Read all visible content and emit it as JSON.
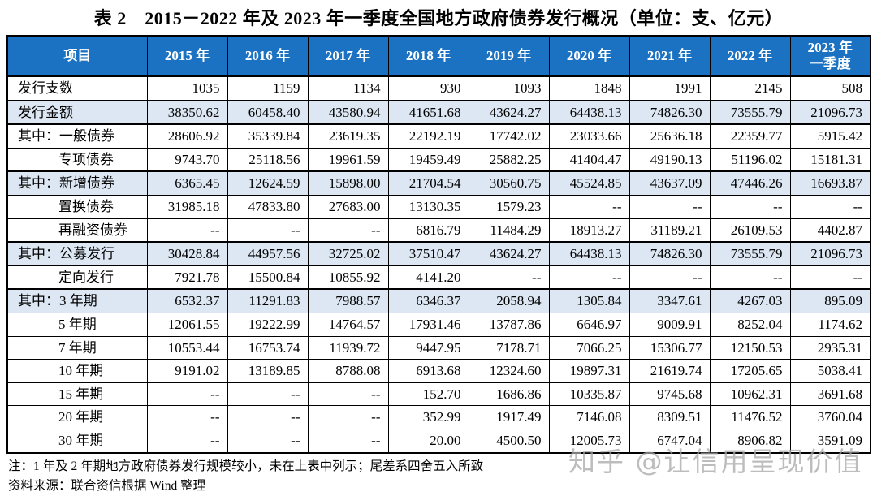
{
  "title": "表 2　2015－2022 年及 2023 年一季度全国地方政府债券发行概况（单位：支、亿元）",
  "colors": {
    "header_bg": "#1b72c2",
    "header_text": "#ffffff",
    "shaded_row_bg": "#dce7f3",
    "border": "#000000",
    "watermark_text": "#a8a8a8"
  },
  "table": {
    "columns": [
      "项目",
      "2015 年",
      "2016 年",
      "2017 年",
      "2018 年",
      "2019 年",
      "2020 年",
      "2021 年",
      "2022 年",
      "2023 年\n一季度"
    ],
    "rows": [
      {
        "label": "发行支数",
        "indent": "top",
        "shaded": false,
        "section": false,
        "values": [
          "1035",
          "1159",
          "1134",
          "930",
          "1093",
          "1848",
          "1991",
          "2145",
          "508"
        ]
      },
      {
        "label": "发行金额",
        "indent": "top",
        "shaded": true,
        "section": true,
        "values": [
          "38350.62",
          "60458.40",
          "43580.94",
          "41651.68",
          "43624.27",
          "64438.13",
          "74826.30",
          "73555.79",
          "21096.73"
        ]
      },
      {
        "label": "其中：一般债券",
        "indent": "top",
        "shaded": false,
        "section": true,
        "values": [
          "28606.92",
          "35339.84",
          "23619.35",
          "22192.19",
          "17742.02",
          "23033.66",
          "25636.18",
          "22359.77",
          "5915.42"
        ]
      },
      {
        "label": "专项债券",
        "indent": "sub",
        "shaded": false,
        "section": false,
        "values": [
          "9743.70",
          "25118.56",
          "19961.59",
          "19459.49",
          "25882.25",
          "41404.47",
          "49190.13",
          "51196.02",
          "15181.31"
        ]
      },
      {
        "label": "其中：新增债券",
        "indent": "top",
        "shaded": true,
        "section": true,
        "values": [
          "6365.45",
          "12624.59",
          "15898.00",
          "21704.54",
          "30560.75",
          "45524.85",
          "43637.09",
          "47446.26",
          "16693.87"
        ]
      },
      {
        "label": "置换债券",
        "indent": "sub",
        "shaded": false,
        "section": false,
        "values": [
          "31985.18",
          "47833.80",
          "27683.00",
          "13130.35",
          "1579.23",
          "--",
          "--",
          "--",
          "--"
        ]
      },
      {
        "label": "再融资债券",
        "indent": "sub",
        "shaded": false,
        "section": false,
        "values": [
          "--",
          "--",
          "--",
          "6816.79",
          "11484.29",
          "18913.27",
          "31189.21",
          "26109.53",
          "4402.87"
        ]
      },
      {
        "label": "其中：公募发行",
        "indent": "top",
        "shaded": true,
        "section": true,
        "values": [
          "30428.84",
          "44957.56",
          "32725.02",
          "37510.47",
          "43624.27",
          "64438.13",
          "74826.30",
          "73555.79",
          "21096.73"
        ]
      },
      {
        "label": "定向发行",
        "indent": "sub",
        "shaded": false,
        "section": false,
        "values": [
          "7921.78",
          "15500.84",
          "10855.92",
          "4141.20",
          "--",
          "--",
          "--",
          "--",
          "--"
        ]
      },
      {
        "label": "其中：3 年期",
        "indent": "top",
        "shaded": true,
        "section": true,
        "values": [
          "6532.37",
          "11291.83",
          "7988.57",
          "6346.37",
          "2058.94",
          "1305.84",
          "3347.61",
          "4267.03",
          "895.09"
        ]
      },
      {
        "label": "5 年期",
        "indent": "sub",
        "shaded": false,
        "section": false,
        "values": [
          "12061.55",
          "19222.99",
          "14764.57",
          "17931.46",
          "13787.86",
          "6646.97",
          "9009.91",
          "8252.04",
          "1174.62"
        ]
      },
      {
        "label": "7 年期",
        "indent": "sub",
        "shaded": false,
        "section": false,
        "values": [
          "10553.44",
          "16753.74",
          "11939.72",
          "9447.95",
          "7178.71",
          "7066.25",
          "15306.77",
          "12150.53",
          "2935.31"
        ]
      },
      {
        "label": "10 年期",
        "indent": "sub",
        "shaded": false,
        "section": false,
        "values": [
          "9191.02",
          "13189.85",
          "8788.08",
          "6913.68",
          "12324.60",
          "19897.31",
          "21619.74",
          "17205.65",
          "5038.41"
        ]
      },
      {
        "label": "15 年期",
        "indent": "sub",
        "shaded": false,
        "section": false,
        "values": [
          "--",
          "--",
          "--",
          "152.70",
          "1686.86",
          "10335.87",
          "9745.68",
          "10962.31",
          "3691.68"
        ]
      },
      {
        "label": "20 年期",
        "indent": "sub",
        "shaded": false,
        "section": false,
        "values": [
          "--",
          "--",
          "--",
          "352.99",
          "1917.49",
          "7146.08",
          "8309.51",
          "11476.52",
          "3760.04"
        ]
      },
      {
        "label": "30 年期",
        "indent": "sub",
        "shaded": false,
        "section": false,
        "values": [
          "--",
          "--",
          "--",
          "20.00",
          "4500.50",
          "12005.73",
          "6747.04",
          "8906.82",
          "3591.09"
        ]
      }
    ]
  },
  "notes": {
    "note": "注：1 年及 2 年期地方政府债券发行规模较小，未在上表中列示；尾差系四舍五入所致",
    "source": "资料来源：联合资信根据 Wind 整理"
  },
  "watermark": "知乎 @让信用呈现价值"
}
